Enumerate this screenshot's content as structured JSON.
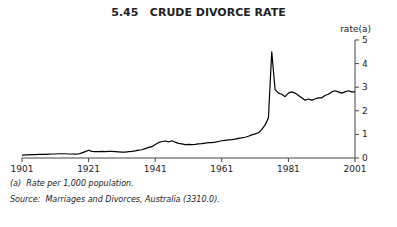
{
  "chart_data": {
    "type": "line",
    "title": "5.45   CRUDE DIVORCE RATE",
    "ylabel": "rate(a)",
    "annotations": [
      "(a)  Rate per 1,000 population.",
      "Source:  Marriages and Divorces, Australia (3310.0)."
    ],
    "color": "#000000",
    "grid": false,
    "xlim": [
      1901,
      2001
    ],
    "ylim": [
      0,
      5
    ],
    "xticks": [
      1901,
      1921,
      1941,
      1961,
      1981,
      2001
    ],
    "yticks": [
      0,
      1,
      2,
      3,
      4,
      5
    ],
    "x": [
      1901,
      1902,
      1903,
      1904,
      1905,
      1906,
      1907,
      1908,
      1909,
      1910,
      1911,
      1912,
      1913,
      1914,
      1915,
      1916,
      1917,
      1918,
      1919,
      1920,
      1921,
      1922,
      1923,
      1924,
      1925,
      1926,
      1927,
      1928,
      1929,
      1930,
      1931,
      1932,
      1933,
      1934,
      1935,
      1936,
      1937,
      1938,
      1939,
      1940,
      1941,
      1942,
      1943,
      1944,
      1945,
      1946,
      1947,
      1948,
      1949,
      1950,
      1951,
      1952,
      1953,
      1954,
      1955,
      1956,
      1957,
      1958,
      1959,
      1960,
      1961,
      1962,
      1963,
      1964,
      1965,
      1966,
      1967,
      1968,
      1969,
      1970,
      1971,
      1972,
      1973,
      1974,
      1975,
      1976,
      1977,
      1978,
      1979,
      1980,
      1981,
      1982,
      1983,
      1984,
      1985,
      1986,
      1987,
      1988,
      1989,
      1990,
      1991,
      1992,
      1993,
      1994,
      1995,
      1996,
      1997,
      1998,
      1999,
      2000,
      2001
    ],
    "values": [
      0.12,
      0.13,
      0.13,
      0.14,
      0.14,
      0.15,
      0.15,
      0.15,
      0.16,
      0.17,
      0.17,
      0.18,
      0.18,
      0.18,
      0.17,
      0.17,
      0.16,
      0.17,
      0.22,
      0.27,
      0.33,
      0.28,
      0.27,
      0.27,
      0.28,
      0.27,
      0.28,
      0.28,
      0.27,
      0.26,
      0.25,
      0.25,
      0.27,
      0.28,
      0.3,
      0.33,
      0.35,
      0.4,
      0.45,
      0.48,
      0.57,
      0.65,
      0.7,
      0.72,
      0.68,
      0.73,
      0.67,
      0.62,
      0.6,
      0.57,
      0.58,
      0.57,
      0.58,
      0.6,
      0.61,
      0.63,
      0.65,
      0.65,
      0.67,
      0.7,
      0.73,
      0.75,
      0.77,
      0.78,
      0.8,
      0.83,
      0.85,
      0.88,
      0.92,
      0.98,
      1.02,
      1.07,
      1.2,
      1.4,
      1.7,
      4.5,
      2.9,
      2.75,
      2.7,
      2.6,
      2.75,
      2.8,
      2.75,
      2.65,
      2.55,
      2.45,
      2.5,
      2.45,
      2.5,
      2.55,
      2.55,
      2.65,
      2.7,
      2.8,
      2.85,
      2.8,
      2.75,
      2.8,
      2.85,
      2.8,
      2.8
    ]
  }
}
